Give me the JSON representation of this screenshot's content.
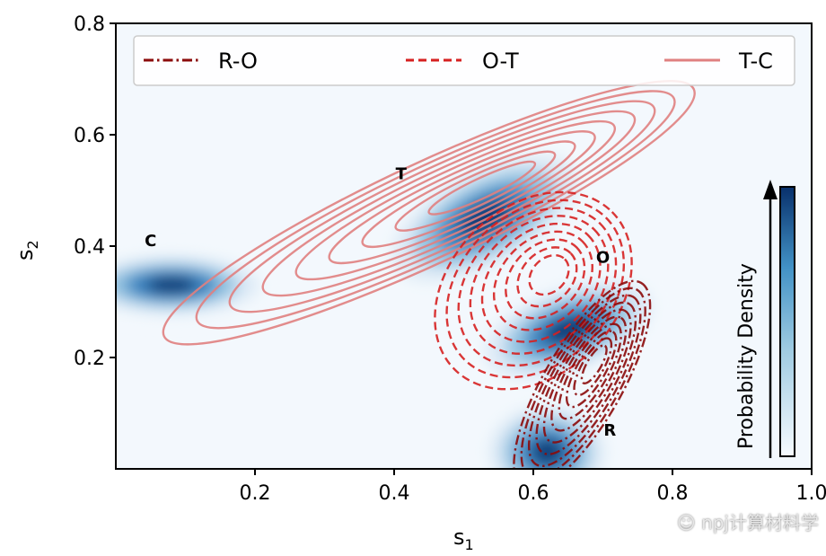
{
  "chart_data": {
    "type": "contour",
    "title": "",
    "xlabel": "s",
    "xlabel_sub": "1",
    "ylabel": "s",
    "ylabel_sub": "2",
    "xlim": [
      0,
      1.0
    ],
    "ylim": [
      0,
      0.8
    ],
    "xticks": [
      0.2,
      0.4,
      0.6,
      0.8,
      1.0
    ],
    "xtick_labels": [
      "0.2",
      "0.4",
      "0.6",
      "0.8",
      "1.0"
    ],
    "yticks": [
      0.2,
      0.4,
      0.6,
      0.8
    ],
    "ytick_labels": [
      "0.2",
      "0.4",
      "0.6",
      "0.8"
    ],
    "legend": {
      "placement": "top",
      "entries": [
        {
          "label": "R-O",
          "style": "dash-dot",
          "color": "#8b0a0a"
        },
        {
          "label": "O-T",
          "style": "dashed",
          "color": "#d62020"
        },
        {
          "label": "T-C",
          "style": "solid",
          "color": "#e08080"
        }
      ]
    },
    "colorbar_label": "Probability Density",
    "colormap": [
      "#f3f8fd",
      "#c6dbef",
      "#6baed6",
      "#2171b5",
      "#08306b"
    ],
    "states": [
      {
        "label": "C",
        "x": 0.05,
        "y": 0.4
      },
      {
        "label": "T",
        "x": 0.41,
        "y": 0.52
      },
      {
        "label": "O",
        "x": 0.7,
        "y": 0.37
      },
      {
        "label": "R",
        "x": 0.71,
        "y": 0.06
      }
    ],
    "density_peaks": [
      {
        "x": 0.08,
        "y": 0.33,
        "sx": 0.06,
        "sy": 0.025,
        "angle": 0,
        "weight": 1.0
      },
      {
        "x": 0.53,
        "y": 0.45,
        "sx": 0.07,
        "sy": 0.04,
        "angle": 28,
        "weight": 0.95
      },
      {
        "x": 0.65,
        "y": 0.25,
        "sx": 0.06,
        "sy": 0.035,
        "angle": 20,
        "weight": 0.9
      },
      {
        "x": 0.62,
        "y": 0.03,
        "sx": 0.04,
        "sy": 0.04,
        "angle": 0,
        "weight": 0.85
      }
    ],
    "series": [
      {
        "name": "T-C",
        "color": "#e08080",
        "style": "solid",
        "levels": 9,
        "cx": 0.45,
        "cy": 0.46,
        "rx": 0.42,
        "ry": 0.09,
        "angle": 25
      },
      {
        "name": "O-T",
        "color": "#d62020",
        "style": "dashed",
        "levels": 9,
        "cx": 0.6,
        "cy": 0.32,
        "rx": 0.16,
        "ry": 0.15,
        "angle": 45
      },
      {
        "name": "R-O",
        "color": "#8b0a0a",
        "style": "dash-dot",
        "levels": 10,
        "cx": 0.67,
        "cy": 0.15,
        "rx": 0.17,
        "ry": 0.07,
        "angle": 60
      }
    ]
  },
  "watermark": {
    "text": "npj计算材料学"
  }
}
